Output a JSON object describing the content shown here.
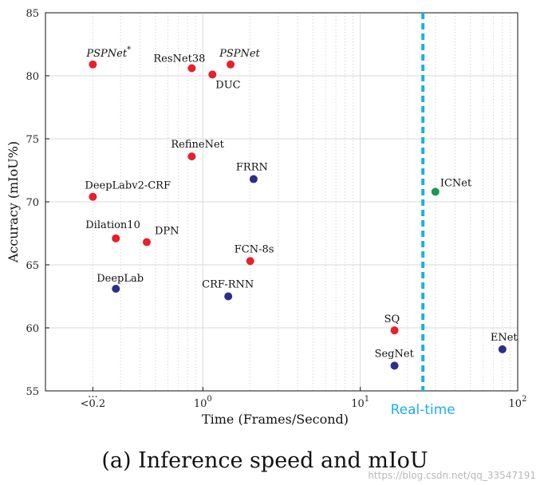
{
  "chart_data": {
    "type": "scatter",
    "title": "",
    "xlabel": "Time (Frames/Second)",
    "ylabel": "Accuracy (mIoU%)",
    "x_scale": "log",
    "xlim": [
      0.1,
      100
    ],
    "ylim": [
      55,
      85
    ],
    "grid": true,
    "x_ticks": [
      {
        "value": 0.2,
        "label": "<0.2"
      },
      {
        "value": 1,
        "label": "10",
        "exp": "0"
      },
      {
        "value": 10,
        "label": "10",
        "exp": "1"
      },
      {
        "value": 100,
        "label": "10",
        "exp": "2"
      }
    ],
    "x_tick_extra": "...",
    "y_ticks": [
      55,
      60,
      65,
      70,
      75,
      80,
      85
    ],
    "threshold": {
      "label": "Real-time",
      "x": 25,
      "color": "#1ab0e8"
    },
    "colors": {
      "red": "#e8202a",
      "blue": "#2a2e8c",
      "green": "#1a9850"
    },
    "points": [
      {
        "name": "PSPNet",
        "sup": "*",
        "italic": true,
        "x": 0.2,
        "y": 80.9,
        "color": "red",
        "lx": -8,
        "ly": -10
      },
      {
        "name": "ResNet38",
        "x": 0.85,
        "y": 80.6,
        "color": "red",
        "lx": -48,
        "ly": -8
      },
      {
        "name": "DUC",
        "x": 1.15,
        "y": 80.1,
        "color": "red",
        "lx": 4,
        "ly": 17
      },
      {
        "name": "PSPNet",
        "italic": true,
        "x": 1.5,
        "y": 80.9,
        "color": "red",
        "lx": -14,
        "ly": -10
      },
      {
        "name": "RefineNet",
        "x": 0.85,
        "y": 73.6,
        "color": "red",
        "lx": -26,
        "ly": -11
      },
      {
        "name": "FRRN",
        "x": 2.1,
        "y": 71.8,
        "color": "blue",
        "lx": -22,
        "ly": -11
      },
      {
        "name": "DeepLabv2-CRF",
        "x": 0.2,
        "y": 70.4,
        "color": "red",
        "lx": -10,
        "ly": -10
      },
      {
        "name": "ICNet",
        "x": 30,
        "y": 70.8,
        "color": "green",
        "lx": 6,
        "ly": -7
      },
      {
        "name": "Dilation10",
        "x": 0.28,
        "y": 67.1,
        "color": "red",
        "lx": -38,
        "ly": -13
      },
      {
        "name": "DPN",
        "x": 0.44,
        "y": 66.8,
        "color": "red",
        "lx": 10,
        "ly": -10
      },
      {
        "name": "FCN-8s",
        "x": 2.0,
        "y": 65.3,
        "color": "red",
        "lx": -20,
        "ly": -11
      },
      {
        "name": "DeepLab",
        "x": 0.28,
        "y": 63.1,
        "color": "blue",
        "lx": -24,
        "ly": -9
      },
      {
        "name": "CRF-RNN",
        "x": 1.45,
        "y": 62.5,
        "color": "blue",
        "lx": -33,
        "ly": -11
      },
      {
        "name": "SQ",
        "x": 16.5,
        "y": 59.8,
        "color": "red",
        "lx": -13,
        "ly": -10
      },
      {
        "name": "SegNet",
        "x": 16.5,
        "y": 57.0,
        "color": "blue",
        "lx": -25,
        "ly": -11
      },
      {
        "name": "ENet",
        "x": 80,
        "y": 58.3,
        "color": "blue",
        "lx": -15,
        "ly": -11
      }
    ]
  },
  "caption": "(a) Inference speed and mIoU",
  "watermark": "https://blog.csdn.net/qq_33547191"
}
